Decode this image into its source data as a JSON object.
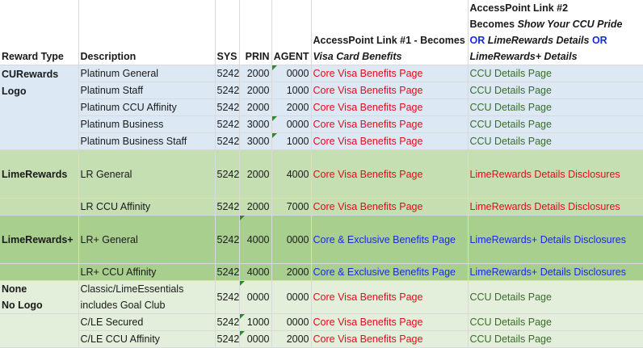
{
  "headers": {
    "reward_type": "Reward Type",
    "description": "Description",
    "sys": "SYS",
    "prin": "PRIN",
    "agent": "AGENT",
    "link1_line1": "AccessPoint Link #1 - Becomes",
    "link1_line2": "Visa Card Benefits",
    "link2_line1": "AccessPoint Link #2",
    "link2_line2a": "Becomes ",
    "link2_line2b": "Show Your CCU Pride",
    "link2_line3a": "OR ",
    "link2_line3b": "LimeRewards Details",
    "link2_line3c": " OR",
    "link2_line4": "LimeRewards+ Details"
  },
  "groups": {
    "curewards": {
      "label1": "CURewards",
      "label2": "Logo"
    },
    "limerewards": {
      "label": "LimeRewards"
    },
    "limerewards_plus": {
      "label": "LimeRewards+"
    },
    "none": {
      "label1": "None",
      "label2": "No Logo"
    }
  },
  "rows": [
    {
      "desc": "Platinum General",
      "sys": "5242",
      "prin": "2000",
      "agent": "0000",
      "link1": "Core Visa Benefits Page",
      "link2": "CCU Details Page"
    },
    {
      "desc": "Platinum Staff",
      "sys": "5242",
      "prin": "2000",
      "agent": "1000",
      "link1": "Core Visa Benefits Page",
      "link2": "CCU Details Page"
    },
    {
      "desc": "Platinum CCU Affinity",
      "sys": "5242",
      "prin": "2000",
      "agent": "2000",
      "link1": "Core Visa Benefits Page",
      "link2": "CCU Details Page"
    },
    {
      "desc": "Platinum Business",
      "sys": "5242",
      "prin": "3000",
      "agent": "0000",
      "link1": "Core Visa Benefits Page",
      "link2": "CCU Details Page"
    },
    {
      "desc": "Platinum Business Staff",
      "sys": "5242",
      "prin": "3000",
      "agent": "1000",
      "link1": "Core Visa Benefits Page",
      "link2": "CCU Details Page"
    },
    {
      "desc": "LR General",
      "sys": "5242",
      "prin": "2000",
      "agent": "4000",
      "link1": "Core Visa Benefits Page",
      "link2": "LimeRewards Details Disclosures"
    },
    {
      "desc": "LR CCU Affinity",
      "sys": "5242",
      "prin": "2000",
      "agent": "7000",
      "link1": "Core Visa Benefits Page",
      "link2": "LimeRewards Details Disclosures"
    },
    {
      "desc": "LR+ General",
      "sys": "5242",
      "prin": "4000",
      "agent": "0000",
      "link1": "Core & Exclusive Benefits Page",
      "link2": "LimeRewards+ Details Disclosures"
    },
    {
      "desc": "LR+  CCU Affinity",
      "sys": "5242",
      "prin": "4000",
      "agent": "2000",
      "link1": "Core & Exclusive Benefits Page",
      "link2": "LimeRewards+ Details Disclosures"
    },
    {
      "desc": "Classic/LimeEssentials",
      "desc2": "includes Goal Club",
      "sys": "5242",
      "prin": "0000",
      "agent": "0000",
      "link1": "Core Visa Benefits Page",
      "link2": "CCU Details Page"
    },
    {
      "desc": "C/LE Secured",
      "sys": "5242",
      "prin": "1000",
      "agent": "0000",
      "link1": "Core Visa Benefits Page",
      "link2": "CCU Details Page"
    },
    {
      "desc": "C/LE CCU Affinity",
      "sys": "5242",
      "prin": "0000",
      "agent": "2000",
      "link1": "Core Visa Benefits Page",
      "link2": "CCU Details Page"
    }
  ]
}
